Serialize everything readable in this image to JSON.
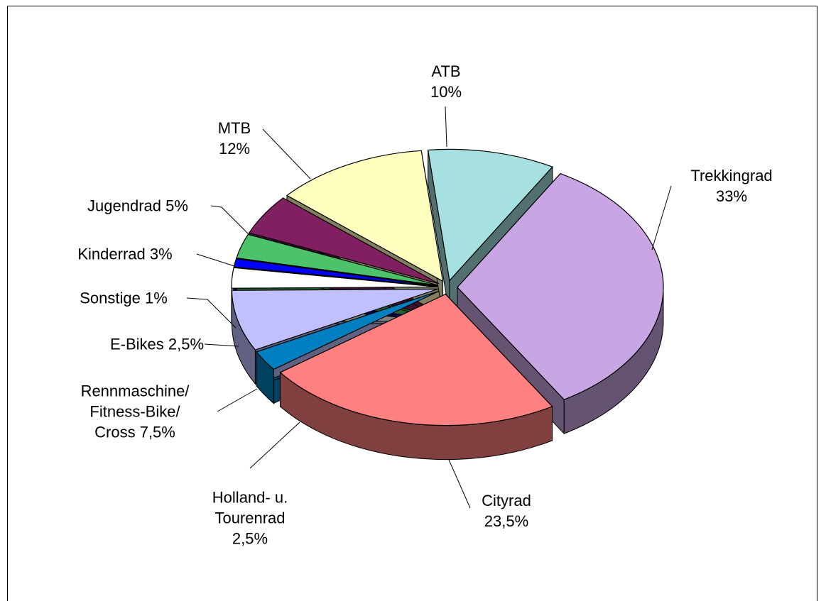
{
  "chart_data": {
    "type": "pie3d",
    "categories": [
      "ATB",
      "Trekkingrad",
      "Cityrad",
      "Holland- u. Tourenrad",
      "Rennmaschine/ Fitness-Bike/ Cross",
      "E-Bikes",
      "Sonstige",
      "Kinderrad",
      "Jugendrad",
      "MTB"
    ],
    "values": [
      10,
      33,
      23.5,
      2.5,
      7.5,
      2.5,
      1,
      3,
      5,
      12
    ],
    "value_labels": [
      "10%",
      "33%",
      "23,5%",
      "2,5%",
      "7,5%",
      "2,5%",
      "1%",
      "3%",
      "5%",
      "12%"
    ],
    "colors": [
      "#a6e0e0",
      "#c9a6e3",
      "#ff8080",
      "#0080c0",
      "#c0c0ff",
      "#ffffff",
      "#0000ff",
      "#4cc26a",
      "#802060",
      "#ffffc0"
    ]
  }
}
